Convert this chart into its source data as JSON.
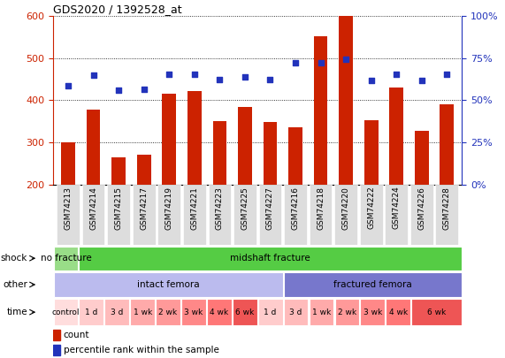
{
  "title": "GDS2020 / 1392528_at",
  "samples": [
    "GSM74213",
    "GSM74214",
    "GSM74215",
    "GSM74217",
    "GSM74219",
    "GSM74221",
    "GSM74223",
    "GSM74225",
    "GSM74227",
    "GSM74216",
    "GSM74218",
    "GSM74220",
    "GSM74222",
    "GSM74224",
    "GSM74226",
    "GSM74228"
  ],
  "counts": [
    300,
    378,
    265,
    270,
    415,
    422,
    350,
    383,
    348,
    335,
    552,
    600,
    353,
    430,
    328,
    390
  ],
  "pct_values": [
    435,
    460,
    425,
    427,
    462,
    462,
    450,
    455,
    450,
    490,
    490,
    497,
    448,
    462,
    447,
    462
  ],
  "ylim_left": [
    200,
    600
  ],
  "ylim_right": [
    0,
    100
  ],
  "yticks_left": [
    200,
    300,
    400,
    500,
    600
  ],
  "yticks_right": [
    0,
    25,
    50,
    75,
    100
  ],
  "bar_color": "#cc2200",
  "dot_color": "#2233bb",
  "shock_labels": [
    {
      "text": "no fracture",
      "start": 0,
      "end": 1,
      "color": "#99dd88"
    },
    {
      "text": "midshaft fracture",
      "start": 1,
      "end": 16,
      "color": "#55cc44"
    }
  ],
  "other_labels": [
    {
      "text": "intact femora",
      "start": 0,
      "end": 9,
      "color": "#bbbbee"
    },
    {
      "text": "fractured femora",
      "start": 9,
      "end": 16,
      "color": "#7777cc"
    }
  ],
  "time_labels": [
    {
      "text": "control",
      "start": 0,
      "end": 1,
      "color": "#ffdddd"
    },
    {
      "text": "1 d",
      "start": 1,
      "end": 2,
      "color": "#ffcccc"
    },
    {
      "text": "3 d",
      "start": 2,
      "end": 3,
      "color": "#ffbbbb"
    },
    {
      "text": "1 wk",
      "start": 3,
      "end": 4,
      "color": "#ffaaaa"
    },
    {
      "text": "2 wk",
      "start": 4,
      "end": 5,
      "color": "#ff9999"
    },
    {
      "text": "3 wk",
      "start": 5,
      "end": 6,
      "color": "#ff8888"
    },
    {
      "text": "4 wk",
      "start": 6,
      "end": 7,
      "color": "#ff7777"
    },
    {
      "text": "6 wk",
      "start": 7,
      "end": 8,
      "color": "#ee5555"
    },
    {
      "text": "1 d",
      "start": 8,
      "end": 9,
      "color": "#ffcccc"
    },
    {
      "text": "3 d",
      "start": 9,
      "end": 10,
      "color": "#ffbbbb"
    },
    {
      "text": "1 wk",
      "start": 10,
      "end": 11,
      "color": "#ffaaaa"
    },
    {
      "text": "2 wk",
      "start": 11,
      "end": 12,
      "color": "#ff9999"
    },
    {
      "text": "3 wk",
      "start": 12,
      "end": 13,
      "color": "#ff8888"
    },
    {
      "text": "4 wk",
      "start": 13,
      "end": 14,
      "color": "#ff7777"
    },
    {
      "text": "6 wk",
      "start": 14,
      "end": 16,
      "color": "#ee5555"
    }
  ],
  "row_labels": [
    "shock",
    "other",
    "time"
  ],
  "tick_label_color_left": "#cc2200",
  "tick_label_color_right": "#2233bb",
  "legend_items": [
    {
      "color": "#cc2200",
      "text": "count"
    },
    {
      "color": "#2233bb",
      "text": "percentile rank within the sample"
    }
  ]
}
